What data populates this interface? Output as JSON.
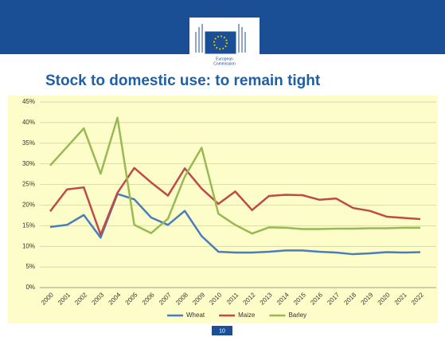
{
  "header": {
    "logo_text": [
      "European",
      "Commission"
    ]
  },
  "chart_data": {
    "type": "line",
    "title": "Stock to domestic use: to remain tight",
    "categories": [
      "2000",
      "2001",
      "2002",
      "2003",
      "2004",
      "2005",
      "2006",
      "2007",
      "2008",
      "2009",
      "2010",
      "2011",
      "2012",
      "2013",
      "2014",
      "2015",
      "2016",
      "2017",
      "2018",
      "2019",
      "2020",
      "2021",
      "2022"
    ],
    "series": [
      {
        "name": "Wheat",
        "color": "#4a7ebb",
        "values": [
          14.7,
          15.2,
          17.6,
          12.1,
          22.7,
          21.4,
          17.0,
          15.2,
          18.6,
          12.5,
          8.7,
          8.5,
          8.5,
          8.7,
          9.0,
          9.0,
          8.7,
          8.5,
          8.1,
          8.3,
          8.6,
          8.5,
          8.6
        ]
      },
      {
        "name": "Maize",
        "color": "#be4b48",
        "values": [
          18.5,
          23.8,
          24.3,
          12.8,
          23.0,
          29.0,
          25.5,
          22.3,
          28.9,
          24.0,
          20.3,
          23.3,
          18.8,
          22.2,
          22.5,
          22.4,
          21.3,
          21.6,
          19.3,
          18.6,
          17.2,
          16.9,
          16.6
        ]
      },
      {
        "name": "Barley",
        "color": "#98b954",
        "values": [
          29.6,
          34.1,
          38.6,
          27.6,
          41.2,
          15.2,
          13.2,
          16.7,
          26.9,
          33.9,
          17.9,
          15.2,
          13.1,
          14.6,
          14.5,
          14.2,
          14.2,
          14.3,
          14.3,
          14.4,
          14.4,
          14.5,
          14.5
        ]
      }
    ],
    "ylim": [
      0,
      45
    ],
    "yticks": [
      {
        "value": 0,
        "label": "0%"
      },
      {
        "value": 5,
        "label": "5%"
      },
      {
        "value": 10,
        "label": "10%"
      },
      {
        "value": 15,
        "label": "15%"
      },
      {
        "value": 20,
        "label": "20%"
      },
      {
        "value": 25,
        "label": "25%"
      },
      {
        "value": 30,
        "label": "30%"
      },
      {
        "value": 35,
        "label": "35%"
      },
      {
        "value": 40,
        "label": "40%"
      },
      {
        "value": 45,
        "label": "45%"
      }
    ],
    "grid": true,
    "legend": "bottom"
  },
  "footer": {
    "page_number": "10"
  }
}
